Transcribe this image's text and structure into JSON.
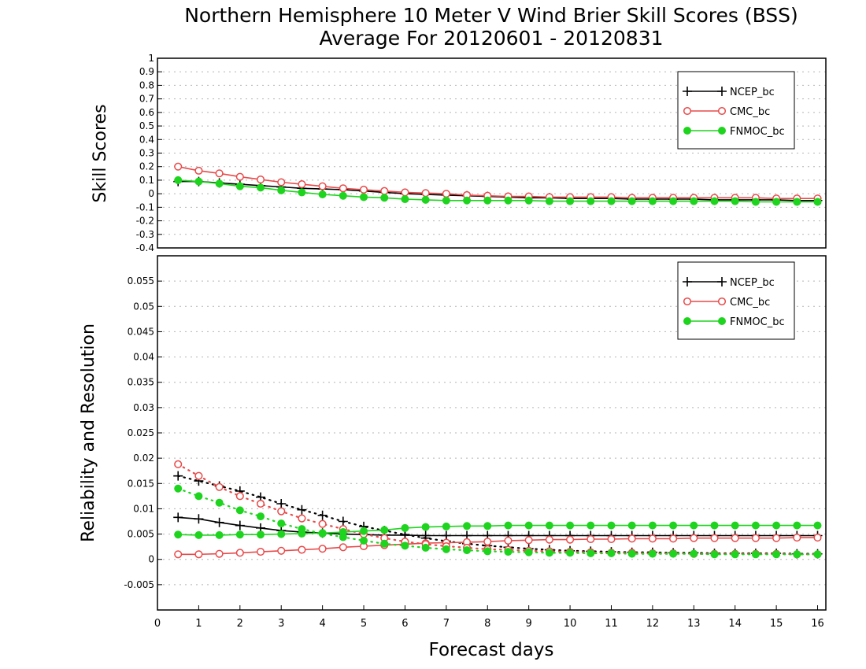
{
  "title_line1": "Northern Hemisphere 10 Meter V Wind Brier Skill Scores (BSS)",
  "title_line2": "Average For 20120601 - 20120831",
  "colors": {
    "NCEP_bc": "#000000",
    "CMC_bc": "#e84a4a",
    "FNMOC_bc": "#1ed41e",
    "grid": "#b4b4b4"
  },
  "chart_data": [
    {
      "type": "line",
      "ylabel": "Skill Scores",
      "xlim": [
        0,
        16.2
      ],
      "ylim": [
        -0.4,
        1
      ],
      "yticks": [
        "1",
        "0.9",
        "0.8",
        "0.7",
        "0.6",
        "0.5",
        "0.4",
        "0.3",
        "0.2",
        "0.1",
        "0",
        "-0.1",
        "-0.2",
        "-0.3",
        "-0.4"
      ],
      "grid": true,
      "legend": "top-right",
      "x": [
        0.5,
        1,
        1.5,
        2,
        2.5,
        3,
        3.5,
        4,
        4.5,
        5,
        5.5,
        6,
        6.5,
        7,
        7.5,
        8,
        8.5,
        9,
        9.5,
        10,
        10.5,
        11,
        11.5,
        12,
        12.5,
        13,
        13.5,
        14,
        14.5,
        15,
        15.5,
        16
      ],
      "series": [
        {
          "name": "NCEP_bc",
          "key": "NCEP_bc",
          "marker": "plus",
          "values": [
            0.09,
            0.09,
            0.08,
            0.07,
            0.06,
            0.05,
            0.04,
            0.035,
            0.03,
            0.02,
            0.01,
            0.0,
            -0.005,
            -0.01,
            -0.015,
            -0.02,
            -0.025,
            -0.03,
            -0.03,
            -0.035,
            -0.035,
            -0.035,
            -0.04,
            -0.04,
            -0.04,
            -0.04,
            -0.045,
            -0.045,
            -0.045,
            -0.045,
            -0.05,
            -0.05
          ]
        },
        {
          "name": "CMC_bc",
          "key": "CMC_bc",
          "marker": "circle",
          "values": [
            0.2,
            0.17,
            0.15,
            0.125,
            0.105,
            0.085,
            0.07,
            0.055,
            0.04,
            0.03,
            0.02,
            0.01,
            0.005,
            0.0,
            -0.01,
            -0.015,
            -0.02,
            -0.02,
            -0.025,
            -0.025,
            -0.025,
            -0.025,
            -0.03,
            -0.03,
            -0.03,
            -0.03,
            -0.03,
            -0.03,
            -0.03,
            -0.035,
            -0.035,
            -0.035
          ]
        },
        {
          "name": "FNMOC_bc",
          "key": "FNMOC_bc",
          "marker": "dot",
          "values": [
            0.1,
            0.09,
            0.075,
            0.055,
            0.045,
            0.025,
            0.01,
            -0.005,
            -0.015,
            -0.025,
            -0.03,
            -0.04,
            -0.045,
            -0.05,
            -0.05,
            -0.05,
            -0.05,
            -0.05,
            -0.055,
            -0.055,
            -0.055,
            -0.055,
            -0.055,
            -0.055,
            -0.055,
            -0.055,
            -0.055,
            -0.055,
            -0.06,
            -0.06,
            -0.06,
            -0.06
          ]
        }
      ]
    },
    {
      "type": "line",
      "ylabel": "Reliability and Resolution",
      "xlabel": "Forecast days",
      "xlim": [
        0,
        16.2
      ],
      "ylim": [
        -0.01,
        0.06
      ],
      "xticks": [
        "0",
        "1",
        "2",
        "3",
        "4",
        "5",
        "6",
        "7",
        "8",
        "9",
        "10",
        "11",
        "12",
        "13",
        "14",
        "15",
        "16"
      ],
      "yticks": [
        "0.055",
        "0.05",
        "0.045",
        "0.04",
        "0.035",
        "0.03",
        "0.025",
        "0.02",
        "0.015",
        "0.01",
        "0.005",
        "0",
        "-0.005"
      ],
      "grid": true,
      "legend": "top-right",
      "x": [
        0.5,
        1,
        1.5,
        2,
        2.5,
        3,
        3.5,
        4,
        4.5,
        5,
        5.5,
        6,
        6.5,
        7,
        7.5,
        8,
        8.5,
        9,
        9.5,
        10,
        10.5,
        11,
        11.5,
        12,
        12.5,
        13,
        13.5,
        14,
        14.5,
        15,
        15.5,
        16
      ],
      "series": [
        {
          "name": "NCEP_bc",
          "key": "NCEP_bc",
          "marker": "plus",
          "style": "solid",
          "values": [
            0.0083,
            0.008,
            0.0073,
            0.0067,
            0.0062,
            0.0057,
            0.0054,
            0.0052,
            0.005,
            0.0049,
            0.0048,
            0.0048,
            0.0047,
            0.0047,
            0.0047,
            0.0047,
            0.0047,
            0.0047,
            0.0047,
            0.0047,
            0.0047,
            0.0047,
            0.0047,
            0.0047,
            0.0047,
            0.0047,
            0.0047,
            0.0047,
            0.0047,
            0.0047,
            0.0047,
            0.0047
          ]
        },
        {
          "name": "NCEP_bc",
          "key": "NCEP_bc",
          "marker": "plus",
          "style": "dotted",
          "values": [
            0.0165,
            0.0155,
            0.0145,
            0.0135,
            0.0123,
            0.011,
            0.0098,
            0.0087,
            0.0075,
            0.0065,
            0.0057,
            0.0049,
            0.0042,
            0.0036,
            0.0031,
            0.0027,
            0.0024,
            0.0021,
            0.0019,
            0.0017,
            0.0016,
            0.0015,
            0.0014,
            0.0014,
            0.0013,
            0.0013,
            0.0012,
            0.0012,
            0.0012,
            0.0012,
            0.0011,
            0.0011
          ]
        },
        {
          "name": "CMC_bc",
          "key": "CMC_bc",
          "marker": "circle",
          "style": "solid",
          "values": [
            0.001,
            0.001,
            0.0011,
            0.0013,
            0.0015,
            0.0017,
            0.0019,
            0.0021,
            0.0024,
            0.0026,
            0.0028,
            0.003,
            0.0032,
            0.0033,
            0.0034,
            0.0035,
            0.0037,
            0.0038,
            0.0039,
            0.0039,
            0.004,
            0.004,
            0.0041,
            0.0041,
            0.0041,
            0.0042,
            0.0042,
            0.0042,
            0.0042,
            0.0042,
            0.0043,
            0.0043
          ]
        },
        {
          "name": "CMC_bc",
          "key": "CMC_bc",
          "marker": "circle",
          "style": "dotted",
          "values": [
            0.0188,
            0.0165,
            0.0143,
            0.0125,
            0.011,
            0.0095,
            0.0081,
            0.007,
            0.006,
            0.005,
            0.0042,
            0.0035,
            0.003,
            0.0026,
            0.0023,
            0.002,
            0.0019,
            0.0017,
            0.0016,
            0.0015,
            0.0014,
            0.0013,
            0.0013,
            0.0012,
            0.0012,
            0.0011,
            0.0011,
            0.0011,
            0.0011,
            0.0011,
            0.001,
            0.001
          ]
        },
        {
          "name": "FNMOC_bc",
          "key": "FNMOC_bc",
          "marker": "dot",
          "style": "solid",
          "values": [
            0.0049,
            0.0048,
            0.0048,
            0.0049,
            0.0049,
            0.005,
            0.0051,
            0.0052,
            0.0054,
            0.0056,
            0.0058,
            0.0062,
            0.0064,
            0.0065,
            0.0066,
            0.0066,
            0.0067,
            0.0067,
            0.0067,
            0.0067,
            0.0067,
            0.0067,
            0.0067,
            0.0067,
            0.0067,
            0.0067,
            0.0067,
            0.0067,
            0.0067,
            0.0067,
            0.0067,
            0.0067
          ]
        },
        {
          "name": "FNMOC_bc",
          "key": "FNMOC_bc",
          "marker": "dot",
          "style": "dotted",
          "values": [
            0.014,
            0.0125,
            0.0112,
            0.0097,
            0.0085,
            0.0071,
            0.006,
            0.0051,
            0.0044,
            0.0037,
            0.0031,
            0.0027,
            0.0023,
            0.002,
            0.0018,
            0.0016,
            0.0015,
            0.0014,
            0.0013,
            0.0013,
            0.0012,
            0.0012,
            0.0011,
            0.0011,
            0.0011,
            0.0011,
            0.001,
            0.001,
            0.001,
            0.001,
            0.001,
            0.001
          ]
        }
      ]
    }
  ],
  "legend_entries": [
    "NCEP_bc",
    "CMC_bc",
    "FNMOC_bc"
  ]
}
